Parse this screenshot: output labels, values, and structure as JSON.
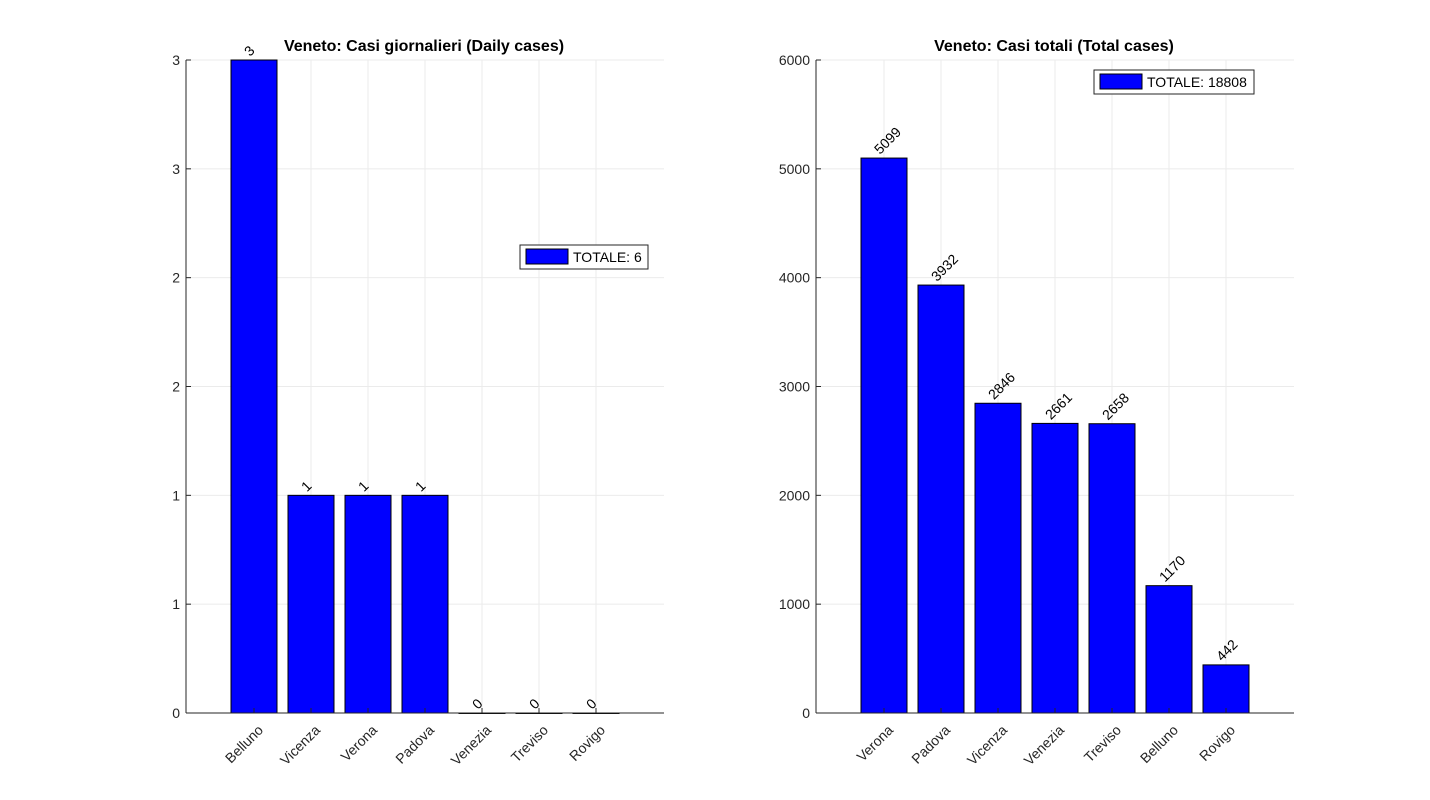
{
  "chart_data": [
    {
      "type": "bar",
      "title": "Veneto: Casi giornalieri (Daily cases)",
      "xlabel": "",
      "ylabel": "",
      "categories": [
        "Belluno",
        "Vicenza",
        "Verona",
        "Padova",
        "Venezia",
        "Treviso",
        "Rovigo"
      ],
      "values": [
        3,
        1,
        1,
        1,
        0,
        0,
        0
      ],
      "data_labels": [
        "3",
        "1",
        "1",
        "1",
        "0",
        "0",
        "0"
      ],
      "ylim": [
        0,
        3
      ],
      "yticks": [
        0,
        0.5,
        1,
        1.5,
        2,
        2.5,
        3
      ],
      "ytick_labels": [
        "0",
        "1",
        "1",
        "2",
        "2",
        "3",
        "3"
      ],
      "legend": {
        "label": "TOTALE: 6",
        "placement": "right"
      },
      "grid": true,
      "bar_color": "#0000ff"
    },
    {
      "type": "bar",
      "title": "Veneto: Casi totali (Total cases)",
      "xlabel": "",
      "ylabel": "",
      "categories": [
        "Verona",
        "Padova",
        "Vicenza",
        "Venezia",
        "Treviso",
        "Belluno",
        "Rovigo"
      ],
      "values": [
        5099,
        3932,
        2846,
        2661,
        2658,
        1170,
        442
      ],
      "data_labels": [
        "5099",
        "3932",
        "2846",
        "2661",
        "2658",
        "1170",
        "442"
      ],
      "ylim": [
        0,
        6000
      ],
      "yticks": [
        0,
        1000,
        2000,
        3000,
        4000,
        5000,
        6000
      ],
      "ytick_labels": [
        "0",
        "1000",
        "2000",
        "3000",
        "4000",
        "5000",
        "6000"
      ],
      "legend": {
        "label": "TOTALE: 18808",
        "placement": "top-right"
      },
      "grid": true,
      "bar_color": "#0000ff"
    }
  ]
}
